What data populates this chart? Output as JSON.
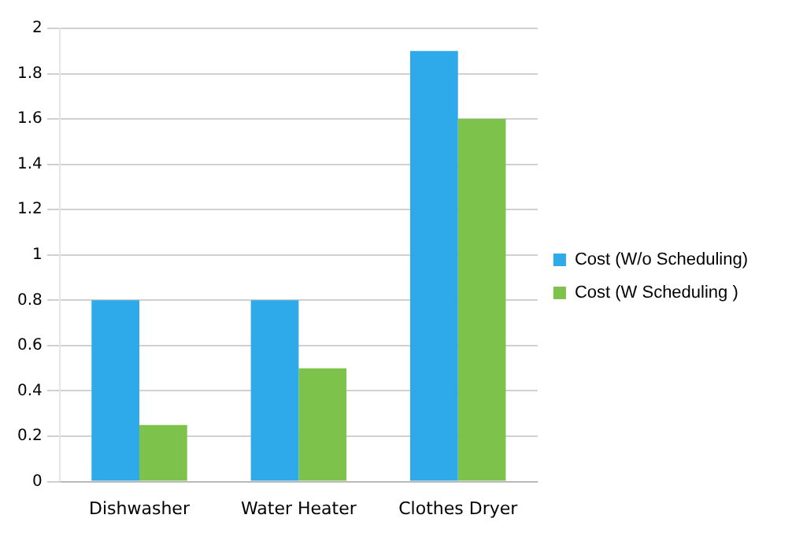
{
  "chart_data": {
    "type": "bar",
    "categories": [
      "Dishwasher",
      "Water Heater",
      "Clothes Dryer"
    ],
    "series": [
      {
        "name": "Cost (W/o Scheduling)",
        "color": "#2ea9e9",
        "values": [
          0.8,
          0.8,
          1.9
        ]
      },
      {
        "name": "Cost (W Scheduling )",
        "color": "#7dc24b",
        "values": [
          0.25,
          0.5,
          1.6
        ]
      }
    ],
    "ylim": [
      0,
      2
    ],
    "yticks": [
      0,
      0.2,
      0.4,
      0.6,
      0.8,
      1,
      1.2,
      1.4,
      1.6,
      1.8,
      2
    ],
    "grid": "y",
    "legend": "right"
  }
}
